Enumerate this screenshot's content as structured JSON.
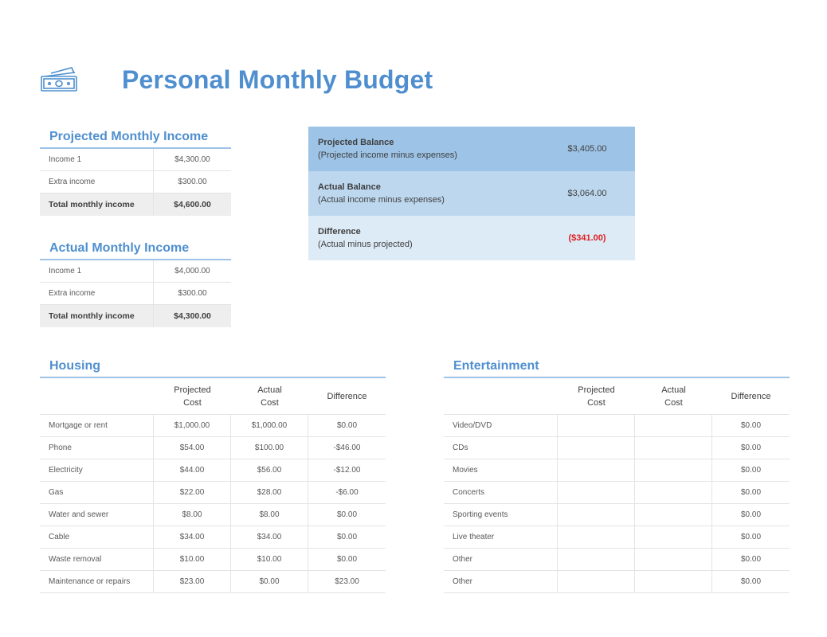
{
  "page": {
    "title": "Personal Monthly Budget",
    "icon": "money-icon",
    "accent": "#4f8fcf"
  },
  "projected_income": {
    "title": "Projected Monthly Income",
    "rows": [
      {
        "label": "Income 1",
        "value": "$4,300.00"
      },
      {
        "label": "Extra income",
        "value": "$300.00"
      }
    ],
    "total": {
      "label": "Total monthly income",
      "value": "$4,600.00"
    }
  },
  "actual_income": {
    "title": "Actual Monthly Income",
    "rows": [
      {
        "label": "Income 1",
        "value": "$4,000.00"
      },
      {
        "label": "Extra income",
        "value": "$300.00"
      }
    ],
    "total": {
      "label": "Total monthly income",
      "value": "$4,300.00"
    }
  },
  "balance": [
    {
      "title": "Projected Balance",
      "subtitle": "(Projected income minus expenses)",
      "value": "$3,405.00"
    },
    {
      "title": "Actual Balance",
      "subtitle": "(Actual income minus expenses)",
      "value": "$3,064.00"
    },
    {
      "title": "Difference",
      "subtitle": "(Actual minus projected)",
      "value": "($341.00)"
    }
  ],
  "housing": {
    "title": "Housing",
    "headers": {
      "projected": "Projected\nCost",
      "actual": "Actual\nCost",
      "difference": "Difference"
    },
    "rows": [
      {
        "label": "Mortgage or rent",
        "projected": "$1,000.00",
        "actual": "$1,000.00",
        "difference": "$0.00"
      },
      {
        "label": "Phone",
        "projected": "$54.00",
        "actual": "$100.00",
        "difference": "-$46.00"
      },
      {
        "label": "Electricity",
        "projected": "$44.00",
        "actual": "$56.00",
        "difference": "-$12.00"
      },
      {
        "label": "Gas",
        "projected": "$22.00",
        "actual": "$28.00",
        "difference": "-$6.00"
      },
      {
        "label": "Water and sewer",
        "projected": "$8.00",
        "actual": "$8.00",
        "difference": "$0.00"
      },
      {
        "label": "Cable",
        "projected": "$34.00",
        "actual": "$34.00",
        "difference": "$0.00"
      },
      {
        "label": "Waste removal",
        "projected": "$10.00",
        "actual": "$10.00",
        "difference": "$0.00"
      },
      {
        "label": "Maintenance or repairs",
        "projected": "$23.00",
        "actual": "$0.00",
        "difference": "$23.00"
      }
    ]
  },
  "entertainment": {
    "title": "Entertainment",
    "headers": {
      "projected": "Projected\nCost",
      "actual": "Actual\nCost",
      "difference": "Difference"
    },
    "rows": [
      {
        "label": "Video/DVD",
        "projected": "",
        "actual": "",
        "difference": "$0.00"
      },
      {
        "label": "CDs",
        "projected": "",
        "actual": "",
        "difference": "$0.00"
      },
      {
        "label": "Movies",
        "projected": "",
        "actual": "",
        "difference": "$0.00"
      },
      {
        "label": "Concerts",
        "projected": "",
        "actual": "",
        "difference": "$0.00"
      },
      {
        "label": "Sporting events",
        "projected": "",
        "actual": "",
        "difference": "$0.00"
      },
      {
        "label": "Live theater",
        "projected": "",
        "actual": "",
        "difference": "$0.00"
      },
      {
        "label": "Other",
        "projected": "",
        "actual": "",
        "difference": "$0.00"
      },
      {
        "label": "Other",
        "projected": "",
        "actual": "",
        "difference": "$0.00"
      }
    ]
  }
}
